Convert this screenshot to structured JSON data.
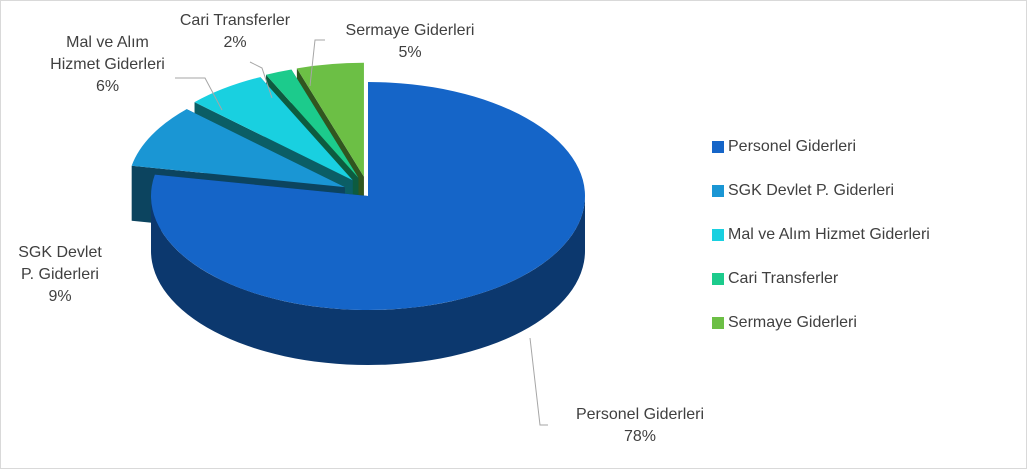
{
  "chart_data": {
    "type": "pie",
    "categories": [
      "Personel Giderleri",
      "SGK Devlet P. Giderleri",
      "Mal ve Alım Hizmet Giderleri",
      "Cari Transferler",
      "Sermaye Giderleri"
    ],
    "values": [
      78,
      9,
      6,
      2,
      5
    ],
    "value_labels": [
      "78%",
      "9%",
      "6%",
      "2%",
      "5%"
    ],
    "colors": [
      "#1565c8",
      "#1a96d4",
      "#19d0e0",
      "#1ccb8c",
      "#6cbf45"
    ],
    "legend": "right"
  }
}
